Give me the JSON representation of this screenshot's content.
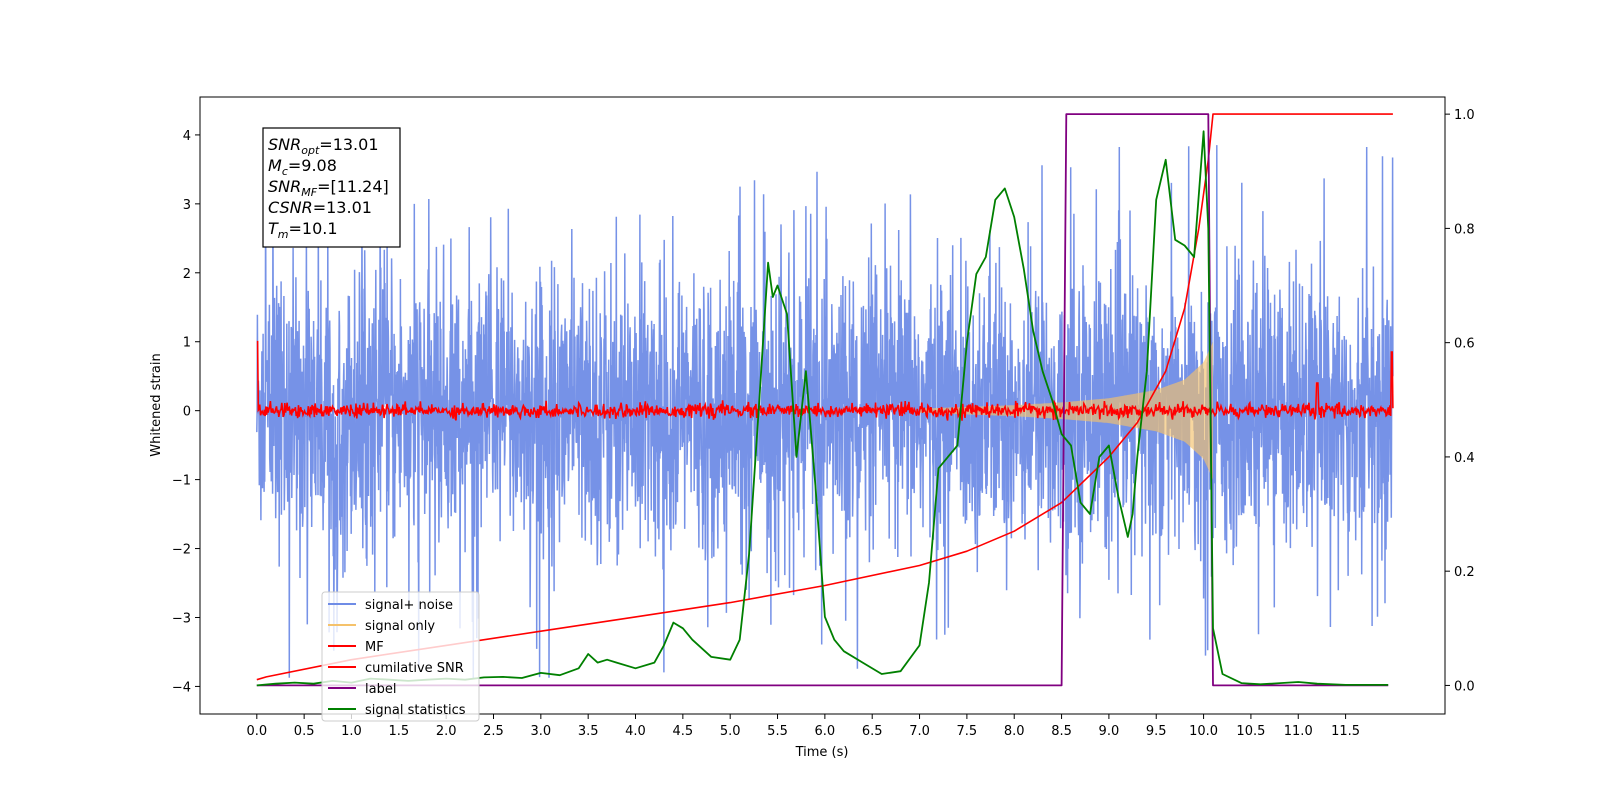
{
  "chart_data": {
    "type": "line",
    "xlabel": "Time (s)",
    "ylabel": "Whitened strain",
    "xlim": [
      -0.6,
      12.55
    ],
    "ylim_left": [
      -4.4,
      4.55
    ],
    "ylim_right": [
      -0.05,
      1.03
    ],
    "x_ticks": [
      "0.0",
      "0.5",
      "1.0",
      "1.5",
      "2.0",
      "2.5",
      "3.0",
      "3.5",
      "4.0",
      "4.5",
      "5.0",
      "5.5",
      "6.0",
      "6.5",
      "7.0",
      "7.5",
      "8.0",
      "8.5",
      "9.0",
      "9.5",
      "10.0",
      "10.5",
      "11.0",
      "11.5"
    ],
    "y_ticks_left": [
      "4",
      "3",
      "2",
      "1",
      "0",
      "−1",
      "−2",
      "−3",
      "−4"
    ],
    "y_ticks_right": [
      "1.0",
      "0.8",
      "0.6",
      "0.4",
      "0.2",
      "0.0"
    ],
    "stats_box": [
      {
        "base": "SNR",
        "sub": "opt",
        "value": "=13.01"
      },
      {
        "base": "M",
        "sub": "c",
        "value": "=9.08"
      },
      {
        "base": "SNR",
        "sub": "MF",
        "value": "=[11.24]"
      },
      {
        "base": "CSNR",
        "sub": "",
        "value": "=13.01"
      },
      {
        "base": "T",
        "sub": "m",
        "value": "=10.1"
      }
    ],
    "legend": [
      {
        "label": "signal+ noise",
        "color": "#6f8ce6"
      },
      {
        "label": "signal only",
        "color": "#f5c26b"
      },
      {
        "label": "MF",
        "color": "#ff0000"
      },
      {
        "label": "cumilative SNR",
        "color": "#ff0000"
      },
      {
        "label": "label",
        "color": "#800080"
      },
      {
        "label": "signal statistics",
        "color": "#008000"
      }
    ],
    "series": [
      {
        "name": "signal+ noise",
        "axis": "left",
        "color": "#6f8ce6",
        "x_range": [
          0.0,
          12.0
        ],
        "noise_std": 1.0,
        "peak_range": [
          -3.9,
          4.1
        ]
      },
      {
        "name": "signal only",
        "axis": "left",
        "color": "#f5c26b",
        "x_range": [
          7.0,
          10.1
        ],
        "envelope": {
          "x": [
            7.0,
            8.0,
            8.5,
            9.0,
            9.5,
            9.8,
            10.0,
            10.1
          ],
          "amp": [
            0.03,
            0.08,
            0.12,
            0.18,
            0.3,
            0.45,
            0.7,
            1.0
          ]
        }
      },
      {
        "name": "MF",
        "axis": "left",
        "color": "#ff0000",
        "x_range": [
          0.0,
          12.0
        ],
        "baseline": 0.0,
        "spikes": [
          {
            "x": 0.0,
            "y": 1.0
          },
          {
            "x": 11.2,
            "y": 0.4
          },
          {
            "x": 11.99,
            "y": 0.85
          }
        ]
      },
      {
        "name": "cumilative SNR",
        "axis": "right",
        "color": "#ff0000",
        "x": [
          0.0,
          0.1,
          1.0,
          2.0,
          3.0,
          4.0,
          5.0,
          6.0,
          7.0,
          7.5,
          8.0,
          8.5,
          9.0,
          9.3,
          9.6,
          9.8,
          9.95,
          10.05,
          10.1,
          12.0
        ],
        "y": [
          0.01,
          0.015,
          0.045,
          0.07,
          0.095,
          0.12,
          0.145,
          0.175,
          0.21,
          0.235,
          0.27,
          0.32,
          0.4,
          0.46,
          0.55,
          0.66,
          0.8,
          0.92,
          1.0,
          1.0
        ]
      },
      {
        "name": "label",
        "axis": "right",
        "color": "#800080",
        "x": [
          0.0,
          8.5,
          8.55,
          10.05,
          10.1,
          11.95
        ],
        "y": [
          0.0,
          0.0,
          1.0,
          1.0,
          0.0,
          0.0
        ]
      },
      {
        "name": "signal statistics",
        "axis": "right",
        "color": "#008000",
        "x": [
          0.0,
          0.2,
          0.4,
          0.6,
          0.8,
          1.0,
          1.2,
          1.4,
          1.6,
          1.8,
          2.0,
          2.2,
          2.4,
          2.6,
          2.8,
          3.0,
          3.2,
          3.4,
          3.5,
          3.6,
          3.7,
          3.8,
          4.0,
          4.2,
          4.3,
          4.4,
          4.5,
          4.6,
          4.8,
          5.0,
          5.1,
          5.2,
          5.3,
          5.4,
          5.45,
          5.5,
          5.6,
          5.7,
          5.8,
          5.9,
          6.0,
          6.1,
          6.2,
          6.4,
          6.6,
          6.8,
          7.0,
          7.1,
          7.2,
          7.3,
          7.4,
          7.5,
          7.6,
          7.7,
          7.8,
          7.9,
          8.0,
          8.1,
          8.2,
          8.3,
          8.4,
          8.5,
          8.6,
          8.7,
          8.8,
          8.9,
          9.0,
          9.1,
          9.2,
          9.25,
          9.3,
          9.4,
          9.5,
          9.6,
          9.7,
          9.8,
          9.9,
          10.0,
          10.05,
          10.1,
          10.2,
          10.4,
          10.6,
          11.0,
          11.2,
          11.5,
          11.95
        ],
        "y": [
          0.0,
          0.003,
          0.005,
          0.003,
          0.008,
          0.005,
          0.012,
          0.01,
          0.008,
          0.01,
          0.012,
          0.01,
          0.014,
          0.015,
          0.013,
          0.022,
          0.018,
          0.03,
          0.055,
          0.04,
          0.045,
          0.04,
          0.03,
          0.04,
          0.07,
          0.11,
          0.1,
          0.08,
          0.05,
          0.045,
          0.08,
          0.23,
          0.48,
          0.74,
          0.68,
          0.7,
          0.65,
          0.4,
          0.55,
          0.35,
          0.12,
          0.08,
          0.06,
          0.04,
          0.02,
          0.025,
          0.07,
          0.18,
          0.38,
          0.4,
          0.42,
          0.6,
          0.72,
          0.75,
          0.85,
          0.87,
          0.82,
          0.73,
          0.62,
          0.55,
          0.5,
          0.44,
          0.42,
          0.32,
          0.3,
          0.4,
          0.42,
          0.33,
          0.26,
          0.3,
          0.4,
          0.55,
          0.85,
          0.92,
          0.78,
          0.77,
          0.75,
          0.97,
          0.8,
          0.1,
          0.02,
          0.004,
          0.002,
          0.006,
          0.003,
          0.001,
          0.001
        ]
      }
    ],
    "grid": false,
    "legend_position": "lower-left"
  }
}
